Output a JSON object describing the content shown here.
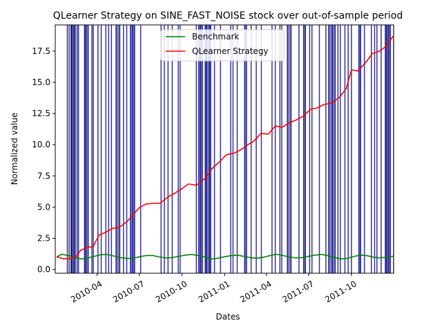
{
  "chart_data": {
    "type": "line",
    "title": "QLearner Strategy on SINE_FAST_NOISE stock over out-of-sample period",
    "xlabel": "Dates",
    "ylabel": "Normalized value",
    "x_range": [
      "2010-01-01",
      "2011-12-31"
    ],
    "ylim": [
      -0.3,
      19.6
    ],
    "x_ticks": [
      {
        "date": "2010-04-01",
        "label": "2010-04"
      },
      {
        "date": "2010-07-01",
        "label": "2010-07"
      },
      {
        "date": "2010-10-01",
        "label": "2010-10"
      },
      {
        "date": "2011-01-01",
        "label": "2011-01"
      },
      {
        "date": "2011-04-01",
        "label": "2011-04"
      },
      {
        "date": "2011-07-01",
        "label": "2011-07"
      },
      {
        "date": "2011-10-01",
        "label": "2011-10"
      }
    ],
    "y_ticks": [
      0.0,
      2.5,
      5.0,
      7.5,
      10.0,
      12.5,
      15.0,
      17.5
    ],
    "y_tick_labels": [
      "0.0",
      "2.5",
      "5.0",
      "7.5",
      "10.0",
      "12.5",
      "15.0",
      "17.5"
    ],
    "grid": false,
    "legend_position": "top-center",
    "series": [
      {
        "name": "Benchmark",
        "color": "#008000",
        "points": [
          [
            "2010-01-04",
            1.0
          ],
          [
            "2010-01-15",
            1.22
          ],
          [
            "2010-01-29",
            1.12
          ],
          [
            "2010-02-12",
            0.95
          ],
          [
            "2010-02-26",
            0.85
          ],
          [
            "2010-03-12",
            0.92
          ],
          [
            "2010-03-26",
            1.05
          ],
          [
            "2010-04-09",
            1.18
          ],
          [
            "2010-04-23",
            1.2
          ],
          [
            "2010-05-07",
            1.08
          ],
          [
            "2010-05-21",
            0.96
          ],
          [
            "2010-06-04",
            0.88
          ],
          [
            "2010-06-18",
            0.9
          ],
          [
            "2010-07-02",
            1.02
          ],
          [
            "2010-07-16",
            1.12
          ],
          [
            "2010-07-30",
            1.12
          ],
          [
            "2010-08-13",
            1.0
          ],
          [
            "2010-08-27",
            0.92
          ],
          [
            "2010-09-10",
            0.95
          ],
          [
            "2010-09-24",
            1.05
          ],
          [
            "2010-10-08",
            1.15
          ],
          [
            "2010-10-22",
            1.2
          ],
          [
            "2010-11-05",
            1.12
          ],
          [
            "2010-11-19",
            1.0
          ],
          [
            "2010-12-03",
            0.85
          ],
          [
            "2010-12-17",
            0.9
          ],
          [
            "2010-12-31",
            1.02
          ],
          [
            "2011-01-14",
            1.1
          ],
          [
            "2011-01-28",
            1.15
          ],
          [
            "2011-02-11",
            1.05
          ],
          [
            "2011-02-25",
            0.95
          ],
          [
            "2011-03-11",
            0.9
          ],
          [
            "2011-03-25",
            0.98
          ],
          [
            "2011-04-08",
            1.1
          ],
          [
            "2011-04-22",
            1.22
          ],
          [
            "2011-05-06",
            1.12
          ],
          [
            "2011-05-20",
            1.0
          ],
          [
            "2011-06-03",
            0.92
          ],
          [
            "2011-06-17",
            0.95
          ],
          [
            "2011-07-01",
            1.05
          ],
          [
            "2011-07-15",
            1.15
          ],
          [
            "2011-07-29",
            1.2
          ],
          [
            "2011-08-12",
            1.1
          ],
          [
            "2011-08-26",
            0.95
          ],
          [
            "2011-09-09",
            0.85
          ],
          [
            "2011-09-23",
            0.9
          ],
          [
            "2011-10-07",
            1.05
          ],
          [
            "2011-10-21",
            1.15
          ],
          [
            "2011-11-04",
            1.1
          ],
          [
            "2011-11-18",
            0.98
          ],
          [
            "2011-12-02",
            0.92
          ],
          [
            "2011-12-16",
            1.0
          ],
          [
            "2011-12-30",
            1.05
          ]
        ]
      },
      {
        "name": "QLearner Strategy",
        "color": "#ff0000",
        "points": [
          [
            "2010-01-04",
            1.0
          ],
          [
            "2010-01-20",
            0.85
          ],
          [
            "2010-02-05",
            0.9
          ],
          [
            "2010-02-15",
            1.05
          ],
          [
            "2010-02-25",
            1.55
          ],
          [
            "2010-03-10",
            1.75
          ],
          [
            "2010-03-24",
            1.85
          ],
          [
            "2010-04-05",
            2.75
          ],
          [
            "2010-04-20",
            3.0
          ],
          [
            "2010-05-05",
            3.3
          ],
          [
            "2010-05-20",
            3.4
          ],
          [
            "2010-06-05",
            3.85
          ],
          [
            "2010-06-20",
            4.5
          ],
          [
            "2010-07-01",
            4.95
          ],
          [
            "2010-07-15",
            5.25
          ],
          [
            "2010-08-01",
            5.3
          ],
          [
            "2010-08-15",
            5.3
          ],
          [
            "2010-08-31",
            5.8
          ],
          [
            "2010-09-15",
            6.1
          ],
          [
            "2010-09-30",
            6.45
          ],
          [
            "2010-10-15",
            6.85
          ],
          [
            "2010-11-01",
            6.75
          ],
          [
            "2010-11-20",
            7.3
          ],
          [
            "2010-12-05",
            8.1
          ],
          [
            "2010-12-20",
            8.6
          ],
          [
            "2011-01-05",
            9.2
          ],
          [
            "2011-01-20",
            9.3
          ],
          [
            "2011-02-05",
            9.6
          ],
          [
            "2011-02-20",
            10.0
          ],
          [
            "2011-03-05",
            10.3
          ],
          [
            "2011-03-20",
            10.9
          ],
          [
            "2011-04-05",
            10.85
          ],
          [
            "2011-04-20",
            11.5
          ],
          [
            "2011-05-05",
            11.4
          ],
          [
            "2011-05-20",
            11.75
          ],
          [
            "2011-06-05",
            12.0
          ],
          [
            "2011-06-20",
            12.3
          ],
          [
            "2011-07-05",
            12.85
          ],
          [
            "2011-07-20",
            12.95
          ],
          [
            "2011-08-01",
            13.2
          ],
          [
            "2011-08-20",
            13.35
          ],
          [
            "2011-09-05",
            13.8
          ],
          [
            "2011-09-20",
            14.5
          ],
          [
            "2011-10-01",
            16.0
          ],
          [
            "2011-10-15",
            15.9
          ],
          [
            "2011-11-01",
            16.6
          ],
          [
            "2011-11-15",
            17.3
          ],
          [
            "2011-12-01",
            17.5
          ],
          [
            "2011-12-15",
            17.9
          ],
          [
            "2011-12-30",
            18.7
          ]
        ]
      }
    ],
    "vertical_markers": {
      "color": "#000080",
      "span_color": "#5a5aa8",
      "dates": [
        "2010-01-27",
        "2010-01-31",
        "2010-02-04",
        "2010-02-06",
        "2010-02-10",
        "2010-02-13",
        "2010-02-17",
        "2010-02-20",
        "2010-03-05",
        "2010-03-08",
        "2010-03-13",
        "2010-03-21",
        "2010-03-24",
        "2010-04-03",
        "2010-04-10",
        "2010-04-20",
        "2010-04-26",
        "2010-05-02",
        "2010-05-12",
        "2010-05-20",
        "2010-05-28",
        "2010-06-04",
        "2010-06-12",
        "2010-06-17",
        "2010-06-21",
        "2010-07-04",
        "2010-08-17",
        "2010-08-24",
        "2010-09-01",
        "2010-09-10",
        "2010-09-23",
        "2010-09-27",
        "2010-11-01",
        "2010-11-06",
        "2010-11-10",
        "2010-11-14",
        "2010-11-20",
        "2010-11-23",
        "2010-11-29",
        "2010-12-02",
        "2010-12-10",
        "2010-12-23",
        "2011-01-14",
        "2011-01-19",
        "2011-01-28",
        "2011-02-13",
        "2011-02-17",
        "2011-02-27",
        "2011-03-10",
        "2011-03-21",
        "2011-04-13",
        "2011-04-20",
        "2011-04-30",
        "2011-05-04",
        "2011-05-16",
        "2011-05-24",
        "2011-06-10",
        "2011-06-20",
        "2011-06-24",
        "2011-07-03",
        "2011-07-08",
        "2011-07-24",
        "2011-08-07",
        "2011-08-13",
        "2011-08-21",
        "2011-08-27",
        "2011-09-02",
        "2011-09-07",
        "2011-09-17",
        "2011-09-24",
        "2011-10-01",
        "2011-10-17",
        "2011-10-21",
        "2011-10-29",
        "2011-11-13",
        "2011-11-20",
        "2011-11-25",
        "2011-12-04",
        "2011-12-13",
        "2011-12-16",
        "2011-12-20",
        "2011-12-24",
        "2011-12-31"
      ],
      "spans": [
        [
          "2010-02-04",
          "2010-02-13"
        ],
        [
          "2010-03-05",
          "2010-03-13"
        ],
        [
          "2010-05-12",
          "2010-05-20"
        ],
        [
          "2010-06-12",
          "2010-06-21"
        ],
        [
          "2010-11-06",
          "2010-11-14"
        ],
        [
          "2010-11-20",
          "2010-12-02"
        ],
        [
          "2011-02-13",
          "2011-02-17"
        ],
        [
          "2011-05-16",
          "2011-05-24"
        ],
        [
          "2011-06-20",
          "2011-06-24"
        ],
        [
          "2011-08-13",
          "2011-08-27"
        ],
        [
          "2011-10-17",
          "2011-10-21"
        ],
        [
          "2011-12-13",
          "2011-12-24"
        ]
      ]
    }
  }
}
